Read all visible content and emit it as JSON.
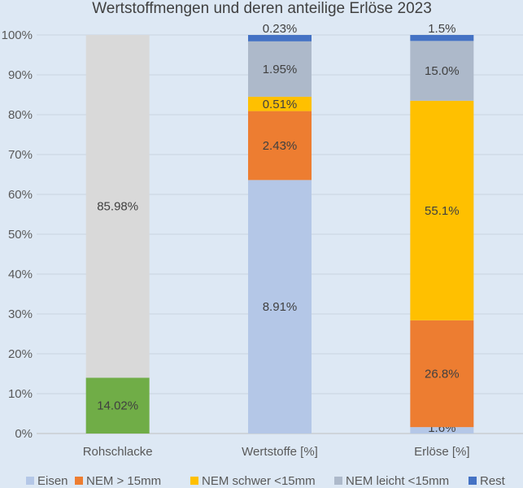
{
  "chart_data": {
    "type": "bar",
    "stacked": true,
    "title": "Wertstoffmengen und deren anteilige Erlöse 2023",
    "categories": [
      "Rohschlacke",
      "Wertstoffe [%]",
      "Erlöse [%]"
    ],
    "ylim": [
      0,
      100
    ],
    "y_tick_labels": [
      "0%",
      "10%",
      "20%",
      "30%",
      "40%",
      "50%",
      "60%",
      "70%",
      "80%",
      "90%",
      "100%"
    ],
    "grid": true,
    "legend_position": "bottom",
    "segments": [
      [
        {
          "series": "",
          "value": 14.0,
          "label": "14.02%",
          "color": "#70ad47"
        },
        {
          "series": "",
          "value": 86.0,
          "label": "85.98%",
          "color": "#d9d9d9"
        }
      ],
      [
        {
          "series": "Eisen",
          "value": 63.6,
          "label": "8.91%",
          "color": "#b4c7e7"
        },
        {
          "series": "NEM > 15mm",
          "value": 17.3,
          "label": "2.43%",
          "color": "#ed7d31"
        },
        {
          "series": "NEM schwer <15mm",
          "value": 3.6,
          "label": "0.51%",
          "color": "#ffc000"
        },
        {
          "series": "NEM leicht <15mm",
          "value": 13.9,
          "label": "1.95%",
          "color": "#adb9ca"
        },
        {
          "series": "Rest",
          "value": 1.6,
          "label": "0.23%",
          "color": "#4472c4"
        }
      ],
      [
        {
          "series": "Eisen",
          "value": 1.6,
          "label": "1.6%",
          "color": "#b4c7e7"
        },
        {
          "series": "NEM > 15mm",
          "value": 26.8,
          "label": "26.8%",
          "color": "#ed7d31"
        },
        {
          "series": "NEM schwer <15mm",
          "value": 55.1,
          "label": "55.1%",
          "color": "#ffc000"
        },
        {
          "series": "NEM leicht <15mm",
          "value": 15.0,
          "label": "15.0%",
          "color": "#adb9ca"
        },
        {
          "series": "Rest",
          "value": 1.5,
          "label": "1.5%",
          "color": "#4472c4"
        }
      ]
    ],
    "legend": [
      {
        "name": "Eisen",
        "color": "#b4c7e7"
      },
      {
        "name": "NEM > 15mm",
        "color": "#ed7d31"
      },
      {
        "name": "NEM schwer <15mm",
        "color": "#ffc000"
      },
      {
        "name": "NEM leicht <15mm",
        "color": "#adb9ca"
      },
      {
        "name": "Rest",
        "color": "#4472c4"
      }
    ]
  }
}
